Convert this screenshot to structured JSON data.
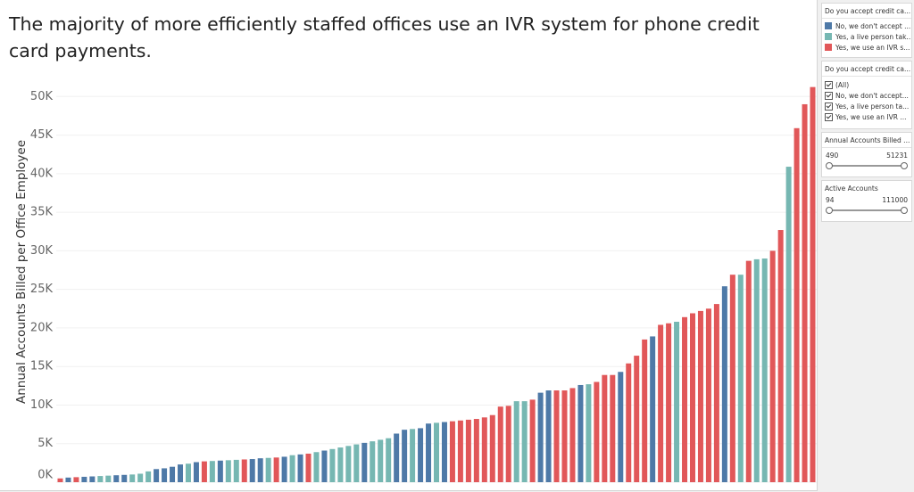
{
  "chart_data": {
    "type": "bar",
    "title": "The majority of more efficiently staffed offices use an IVR system for phone credit card payments.",
    "y_label": "Annual Accounts Billed per Office Employee",
    "ylim": [
      0,
      52000
    ],
    "yticks": [
      {
        "value": 0,
        "label": "0K"
      },
      {
        "value": 5000,
        "label": "5K"
      },
      {
        "value": 10000,
        "label": "10K"
      },
      {
        "value": 15000,
        "label": "15K"
      },
      {
        "value": 20000,
        "label": "20K"
      },
      {
        "value": 25000,
        "label": "25K"
      },
      {
        "value": 30000,
        "label": "30K"
      },
      {
        "value": 35000,
        "label": "35K"
      },
      {
        "value": 40000,
        "label": "40K"
      },
      {
        "value": 45000,
        "label": "45K"
      },
      {
        "value": 50000,
        "label": "50K"
      }
    ],
    "grid": true,
    "values": [
      490,
      600,
      650,
      700,
      750,
      800,
      850,
      900,
      950,
      1000,
      1100,
      1400,
      1700,
      1800,
      2000,
      2300,
      2400,
      2600,
      2700,
      2750,
      2800,
      2850,
      2900,
      2950,
      3000,
      3100,
      3150,
      3200,
      3300,
      3500,
      3600,
      3700,
      3900,
      4100,
      4300,
      4500,
      4700,
      4900,
      5100,
      5300,
      5500,
      5700,
      6300,
      6800,
      6900,
      7000,
      7600,
      7700,
      7800,
      7900,
      8000,
      8100,
      8200,
      8400,
      8700,
      9800,
      9900,
      10500,
      10500,
      10700,
      11600,
      11900,
      11900,
      11900,
      12200,
      12600,
      12700,
      13000,
      13900,
      13900,
      14300,
      15400,
      16400,
      18500,
      18900,
      20400,
      20600,
      20800,
      21400,
      21900,
      22200,
      22500,
      23100,
      25400,
      26900,
      26900,
      28700,
      28900,
      29000,
      30000,
      32700,
      40900,
      45900,
      49000,
      51231
    ],
    "colors": [
      "#e15759",
      "#4e79a7",
      "#e15759",
      "#4e79a7",
      "#4e79a7",
      "#76b7b2",
      "#76b7b2",
      "#4e79a7",
      "#4e79a7",
      "#76b7b2",
      "#76b7b2",
      "#76b7b2",
      "#4e79a7",
      "#4e79a7",
      "#4e79a7",
      "#4e79a7",
      "#76b7b2",
      "#4e79a7",
      "#e15759",
      "#76b7b2",
      "#4e79a7",
      "#76b7b2",
      "#76b7b2",
      "#e15759",
      "#4e79a7",
      "#4e79a7",
      "#76b7b2",
      "#e15759",
      "#4e79a7",
      "#76b7b2",
      "#4e79a7",
      "#e15759",
      "#76b7b2",
      "#4e79a7",
      "#76b7b2",
      "#76b7b2",
      "#76b7b2",
      "#76b7b2",
      "#4e79a7",
      "#76b7b2",
      "#76b7b2",
      "#76b7b2",
      "#4e79a7",
      "#4e79a7",
      "#76b7b2",
      "#4e79a7",
      "#4e79a7",
      "#76b7b2",
      "#4e79a7",
      "#e15759",
      "#e15759",
      "#e15759",
      "#e15759",
      "#e15759",
      "#e15759",
      "#e15759",
      "#e15759",
      "#76b7b2",
      "#76b7b2",
      "#e15759",
      "#4e79a7",
      "#4e79a7",
      "#e15759",
      "#e15759",
      "#e15759",
      "#4e79a7",
      "#76b7b2",
      "#e15759",
      "#e15759",
      "#e15759",
      "#4e79a7",
      "#e15759",
      "#e15759",
      "#e15759",
      "#4e79a7",
      "#e15759",
      "#e15759",
      "#76b7b2",
      "#e15759",
      "#e15759",
      "#e15759",
      "#e15759",
      "#e15759",
      "#4e79a7",
      "#e15759",
      "#76b7b2",
      "#e15759",
      "#76b7b2",
      "#76b7b2",
      "#e15759",
      "#e15759",
      "#76b7b2",
      "#e15759",
      "#e15759",
      "#e15759"
    ],
    "legend": {
      "title": "Do you accept credit ca...",
      "items": [
        {
          "name": "No, we don't accept ...",
          "color": "#4e79a7"
        },
        {
          "name": "Yes, a live person tak...",
          "color": "#76b7b2"
        },
        {
          "name": "Yes, we use an IVR s...",
          "color": "#e15759"
        }
      ]
    }
  },
  "filter": {
    "title": "Do you accept credit ca...",
    "options": [
      "(All)",
      "No, we don't accept...",
      "Yes, a live person ta...",
      "Yes, we use an IVR ..."
    ]
  },
  "sliders": [
    {
      "title": "Annual Accounts Billed ...",
      "min": 490,
      "max": 51231
    },
    {
      "title": "Active Accounts",
      "min": 94,
      "max": 111000
    }
  ]
}
